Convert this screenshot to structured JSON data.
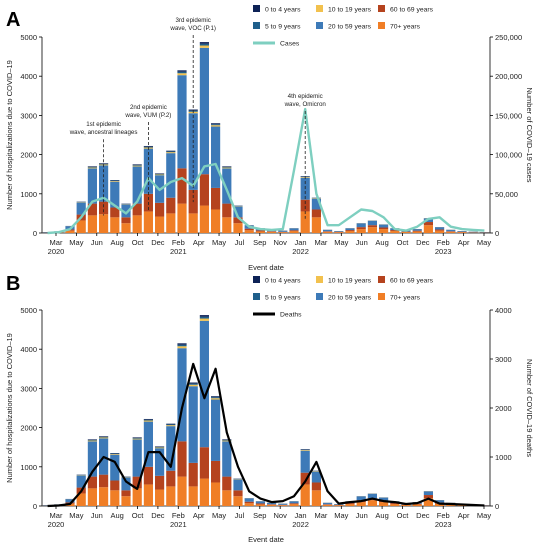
{
  "chart_data": [
    {
      "panel_label": "A",
      "type": "bar",
      "xlabel": "Event date",
      "ylabel": "Number of hospitalizations due to COVID–19",
      "ylabel_right": "Number of COVID–19 cases",
      "ylim": [
        0,
        5000
      ],
      "ylim_right": [
        0,
        250000
      ],
      "yticks": [
        "0",
        "1000",
        "2000",
        "3000",
        "4000",
        "5000"
      ],
      "yticks_right": [
        "0",
        "50,000",
        "100,000",
        "150,000",
        "200,000",
        "250,000"
      ],
      "xtick_labels": [
        [
          "Mar",
          "2020"
        ],
        [
          "May",
          ""
        ],
        [
          "Jun",
          ""
        ],
        [
          "Aug",
          ""
        ],
        [
          "Oct",
          ""
        ],
        [
          "Dec",
          ""
        ],
        [
          "Feb",
          "2021"
        ],
        [
          "Apr",
          ""
        ],
        [
          "May",
          ""
        ],
        [
          "Jul",
          ""
        ],
        [
          "Sep",
          ""
        ],
        [
          "Nov",
          ""
        ],
        [
          "Jan",
          "2022"
        ],
        [
          "Mar",
          ""
        ],
        [
          "May",
          ""
        ],
        [
          "Jun",
          ""
        ],
        [
          "Aug",
          ""
        ],
        [
          "Oct",
          ""
        ],
        [
          "Dec",
          ""
        ],
        [
          "Feb",
          "2023"
        ],
        [
          "Apr",
          ""
        ],
        [
          "May",
          ""
        ]
      ],
      "legend_position": "top-right",
      "legend": [
        "0 to 4 years",
        "10 to 19 years",
        "60 to 69 years",
        "5 to 9 years",
        "20 to 59 years",
        "70+ years",
        "Cases"
      ],
      "bars_total": [
        20,
        40,
        180,
        800,
        1700,
        1780,
        1350,
        750,
        1750,
        2220,
        1520,
        2100,
        4150,
        3150,
        4870,
        2800,
        1700,
        700,
        200,
        120,
        80,
        60,
        120,
        1450,
        900,
        80,
        50,
        120,
        250,
        320,
        220,
        120,
        60,
        100,
        380,
        150,
        80,
        50,
        30,
        20
      ],
      "bars_70plus": [
        5,
        10,
        60,
        320,
        450,
        480,
        400,
        250,
        450,
        550,
        420,
        500,
        750,
        500,
        700,
        600,
        400,
        250,
        70,
        40,
        30,
        20,
        50,
        550,
        400,
        30,
        20,
        50,
        100,
        150,
        100,
        50,
        25,
        40,
        200,
        60,
        30,
        20,
        10,
        5
      ],
      "bars_60to69": [
        2,
        5,
        30,
        150,
        300,
        320,
        250,
        150,
        300,
        450,
        350,
        400,
        900,
        600,
        800,
        550,
        350,
        150,
        40,
        25,
        15,
        10,
        20,
        300,
        200,
        15,
        10,
        25,
        50,
        50,
        40,
        25,
        10,
        20,
        80,
        30,
        15,
        10,
        5,
        5
      ],
      "annotations": [
        {
          "text": [
            "1st epidemic",
            "wave, ancestral lineages"
          ],
          "bar_index": 5
        },
        {
          "text": [
            "2nd epidemic",
            "wave, VUM (P.2)"
          ],
          "bar_index": 9
        },
        {
          "text": [
            "3rd epidemic",
            "wave, VOC (P.1)"
          ],
          "bar_index": 13
        },
        {
          "text": [
            "4th epidemic",
            "wave, Omicron"
          ],
          "bar_index": 23
        }
      ],
      "series": [
        {
          "name": "Cases",
          "values": [
            0,
            1000,
            5000,
            20000,
            40000,
            45000,
            35000,
            25000,
            40000,
            70000,
            55000,
            65000,
            70000,
            60000,
            85000,
            88000,
            55000,
            20000,
            8000,
            5000,
            4000,
            5000,
            80000,
            158000,
            50000,
            10000,
            10000,
            20000,
            30000,
            28000,
            20000,
            5000,
            3000,
            8000,
            18000,
            20000,
            8000,
            5000,
            4000,
            3000
          ]
        }
      ]
    },
    {
      "panel_label": "B",
      "type": "bar",
      "xlabel": "Event date",
      "ylabel": "Number of hospitalizations due to COVID–19",
      "ylabel_right": "Number of COVID–19 deaths",
      "ylim": [
        0,
        5000
      ],
      "ylim_right": [
        0,
        4000
      ],
      "yticks": [
        "0",
        "1000",
        "2000",
        "3000",
        "4000",
        "5000"
      ],
      "yticks_right": [
        "0",
        "1000",
        "2000",
        "3000",
        "4000"
      ],
      "xtick_labels": [
        [
          "Mar",
          "2020"
        ],
        [
          "May",
          ""
        ],
        [
          "Jun",
          ""
        ],
        [
          "Aug",
          ""
        ],
        [
          "Oct",
          ""
        ],
        [
          "Dec",
          ""
        ],
        [
          "Feb",
          "2021"
        ],
        [
          "Apr",
          ""
        ],
        [
          "May",
          ""
        ],
        [
          "Jul",
          ""
        ],
        [
          "Sep",
          ""
        ],
        [
          "Nov",
          ""
        ],
        [
          "Jan",
          "2022"
        ],
        [
          "Mar",
          ""
        ],
        [
          "May",
          ""
        ],
        [
          "Jun",
          ""
        ],
        [
          "Aug",
          ""
        ],
        [
          "Oct",
          ""
        ],
        [
          "Dec",
          ""
        ],
        [
          "Feb",
          "2023"
        ],
        [
          "Apr",
          ""
        ],
        [
          "May",
          ""
        ]
      ],
      "legend_position": "top-center",
      "legend": [
        "0 to 4 years",
        "10 to 19 years",
        "60 to 69 years",
        "5 to 9 years",
        "20 to 59 years",
        "70+ years",
        "Deaths"
      ],
      "bars_total": [
        20,
        40,
        180,
        800,
        1700,
        1780,
        1350,
        750,
        1750,
        2220,
        1520,
        2100,
        4150,
        3150,
        4870,
        2800,
        1700,
        700,
        200,
        120,
        80,
        60,
        120,
        1450,
        900,
        80,
        50,
        120,
        250,
        320,
        220,
        120,
        60,
        100,
        380,
        150,
        80,
        50,
        30,
        20
      ],
      "bars_70plus": [
        5,
        10,
        60,
        320,
        450,
        480,
        400,
        250,
        450,
        550,
        420,
        500,
        750,
        500,
        700,
        600,
        400,
        250,
        70,
        40,
        30,
        20,
        50,
        550,
        400,
        30,
        20,
        50,
        100,
        150,
        100,
        50,
        25,
        40,
        200,
        60,
        30,
        20,
        10,
        5
      ],
      "bars_60to69": [
        2,
        5,
        30,
        150,
        300,
        320,
        250,
        150,
        300,
        450,
        350,
        400,
        900,
        600,
        800,
        550,
        350,
        150,
        40,
        25,
        15,
        10,
        20,
        300,
        200,
        15,
        10,
        25,
        50,
        50,
        40,
        25,
        10,
        20,
        80,
        30,
        15,
        10,
        5,
        5
      ],
      "series": [
        {
          "name": "Deaths",
          "values": [
            0,
            10,
            40,
            300,
            700,
            1000,
            900,
            500,
            350,
            1100,
            1100,
            800,
            2000,
            2900,
            2200,
            2800,
            1500,
            800,
            300,
            150,
            80,
            100,
            200,
            500,
            900,
            300,
            50,
            80,
            100,
            150,
            100,
            80,
            40,
            60,
            150,
            50,
            40,
            30,
            20,
            10
          ]
        }
      ]
    }
  ],
  "colors": {
    "age_0_4": "#0d2256",
    "age_5_9": "#1f5f8b",
    "age_10_19": "#f2c14e",
    "age_20_59": "#3d7ab8",
    "age_60_69": "#b5431e",
    "age_70plus": "#f07e26",
    "cases_line": "#7ecfc0",
    "deaths_line": "#000000"
  }
}
